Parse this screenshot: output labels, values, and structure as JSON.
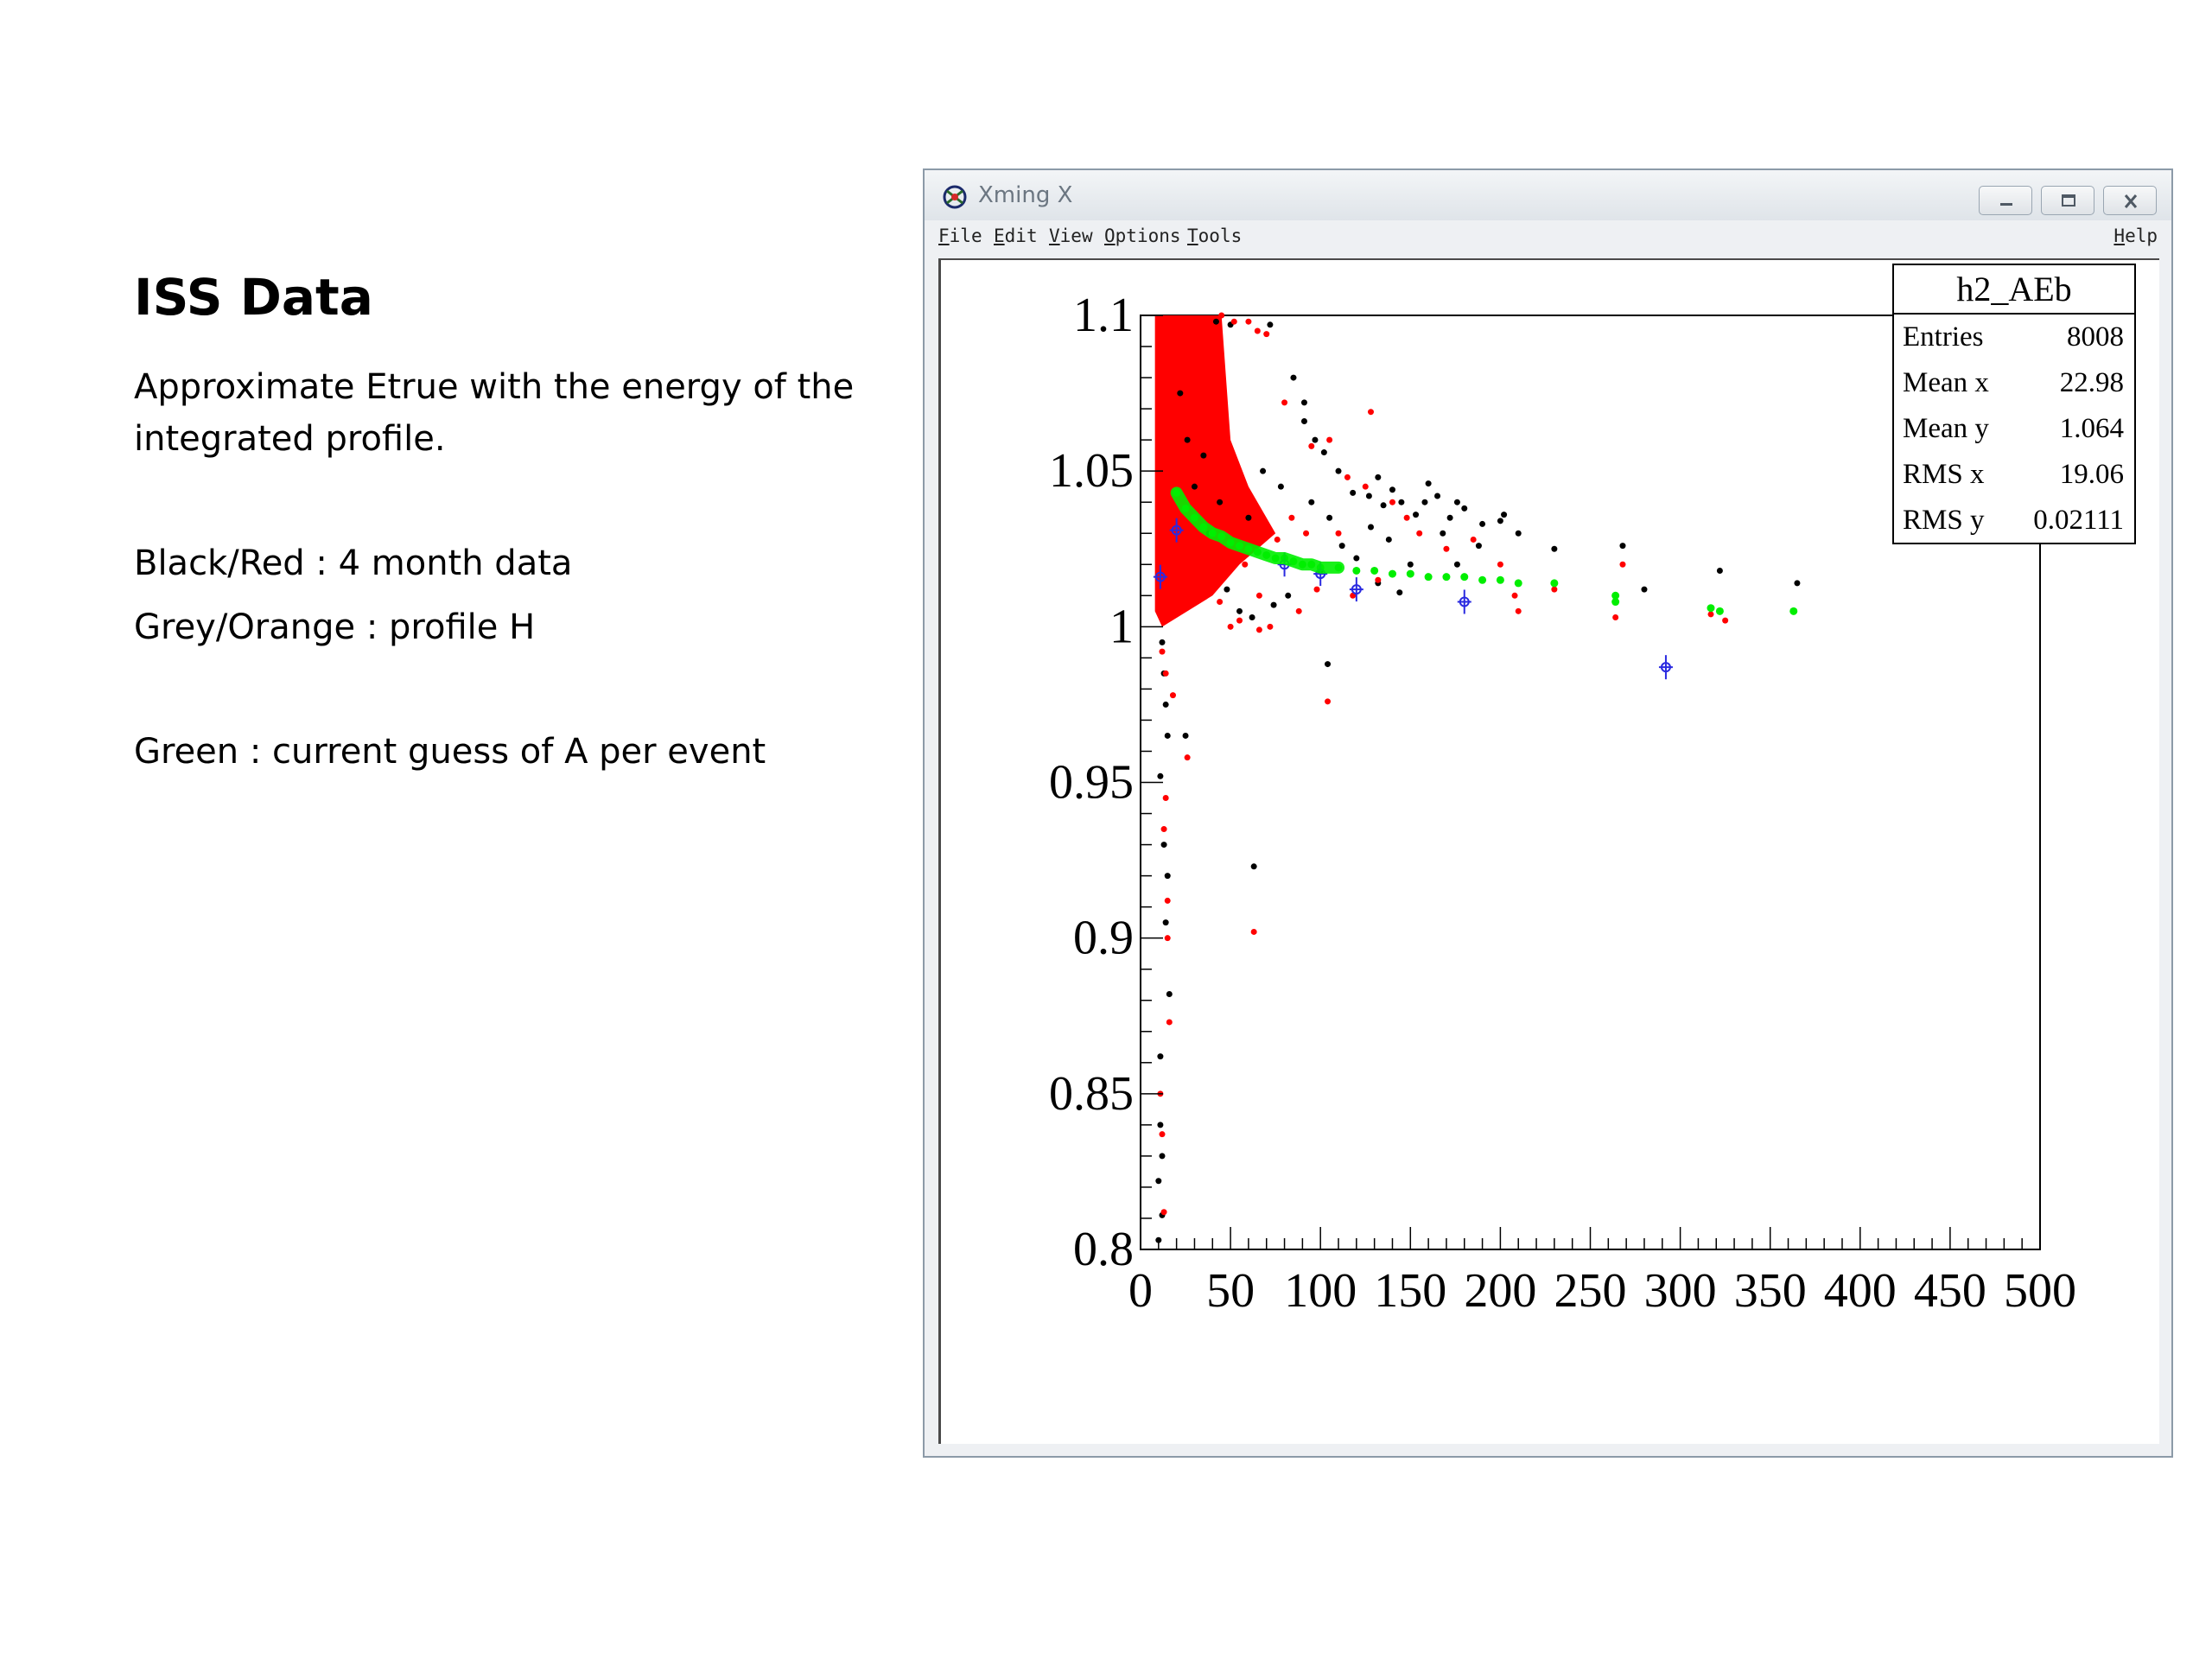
{
  "slide": {
    "title": "ISS Data",
    "description": "Approximate Etrue with the energy of the integrated profile.",
    "legend_lines": [
      "Black/Red : 4 month data",
      "Grey/Orange : profile H",
      "Green : current guess of A per event"
    ]
  },
  "window": {
    "title": "Xming X",
    "menu": [
      "File",
      "Edit",
      "View",
      "Options",
      "Tools"
    ],
    "menu_right": "Help",
    "icons": {
      "app": "xming-logo-icon",
      "minimize": "minimize-icon",
      "maximize": "maximize-icon",
      "close": "close-icon"
    }
  },
  "stats_box": {
    "title": "h2_AEb",
    "rows": [
      {
        "label": "Entries",
        "value": "8008"
      },
      {
        "label": "Mean x",
        "value": "22.98"
      },
      {
        "label": "Mean y",
        "value": "1.064"
      },
      {
        "label": "RMS x",
        "value": "19.06"
      },
      {
        "label": "RMS y",
        "value": "0.02111"
      }
    ]
  },
  "chart_data": {
    "type": "scatter",
    "title": "",
    "xlabel": "",
    "ylabel": "",
    "xlim": [
      0,
      500
    ],
    "ylim": [
      0.8,
      1.1
    ],
    "x_ticks": [
      0,
      50,
      100,
      150,
      200,
      250,
      300,
      350,
      400,
      450,
      500
    ],
    "y_ticks": [
      0.8,
      0.85,
      0.9,
      0.95,
      1.0,
      1.05,
      1.1
    ],
    "x_tick_labels": [
      "0",
      "50",
      "100",
      "150",
      "200",
      "250",
      "300",
      "350",
      "400",
      "450",
      "500"
    ],
    "y_tick_labels": [
      "0.8",
      "0.85",
      "0.9",
      "0.95",
      "1",
      "1.05",
      "1.1"
    ],
    "grid": false,
    "colors": {
      "black": "#000000",
      "red": "#ff0000",
      "green": "#00ee00",
      "blue": "#2a2ae0"
    },
    "series": [
      {
        "color": "black",
        "points": [
          [
            42,
            1.098
          ],
          [
            50,
            1.097
          ],
          [
            72,
            1.097
          ],
          [
            85,
            1.08
          ],
          [
            91,
            1.066
          ],
          [
            91,
            1.072
          ],
          [
            97,
            1.06
          ],
          [
            102,
            1.056
          ],
          [
            110,
            1.05
          ],
          [
            118,
            1.043
          ],
          [
            127,
            1.042
          ],
          [
            132,
            1.048
          ],
          [
            135,
            1.039
          ],
          [
            140,
            1.044
          ],
          [
            145,
            1.04
          ],
          [
            153,
            1.036
          ],
          [
            158,
            1.04
          ],
          [
            160,
            1.046
          ],
          [
            165,
            1.042
          ],
          [
            168,
            1.03
          ],
          [
            172,
            1.035
          ],
          [
            176,
            1.04
          ],
          [
            180,
            1.038
          ],
          [
            190,
            1.033
          ],
          [
            200,
            1.034
          ],
          [
            202,
            1.036
          ],
          [
            210,
            1.03
          ],
          [
            230,
            1.025
          ],
          [
            268,
            1.026
          ],
          [
            280,
            1.012
          ],
          [
            322,
            1.018
          ],
          [
            365,
            1.014
          ],
          [
            150,
            1.02
          ],
          [
            138,
            1.028
          ],
          [
            128,
            1.032
          ],
          [
            112,
            1.026
          ],
          [
            100,
            1.018
          ],
          [
            90,
            1.02
          ],
          [
            82,
            1.01
          ],
          [
            74,
            1.007
          ],
          [
            62,
            1.003
          ],
          [
            55,
            1.005
          ],
          [
            48,
            1.012
          ],
          [
            38,
            1.03
          ],
          [
            30,
            1.045
          ],
          [
            26,
            1.06
          ],
          [
            22,
            1.075
          ],
          [
            35,
            1.055
          ],
          [
            44,
            1.04
          ],
          [
            60,
            1.035
          ],
          [
            68,
            1.05
          ],
          [
            78,
            1.045
          ],
          [
            95,
            1.04
          ],
          [
            105,
            1.035
          ],
          [
            120,
            1.022
          ],
          [
            132,
            1.014
          ],
          [
            144,
            1.011
          ],
          [
            160,
            1.016
          ],
          [
            176,
            1.02
          ],
          [
            188,
            1.026
          ],
          [
            12,
            0.995
          ],
          [
            13,
            0.985
          ],
          [
            14,
            0.975
          ],
          [
            15,
            0.965
          ],
          [
            11,
            0.952
          ],
          [
            13,
            0.93
          ],
          [
            15,
            0.92
          ],
          [
            14,
            0.905
          ],
          [
            16,
            0.882
          ],
          [
            11,
            0.862
          ],
          [
            11,
            0.84
          ],
          [
            12,
            0.83
          ],
          [
            10,
            0.822
          ],
          [
            12,
            0.811
          ],
          [
            10,
            0.803
          ],
          [
            25,
            0.965
          ],
          [
            63,
            0.923
          ],
          [
            104,
            0.988
          ]
        ]
      },
      {
        "color": "red",
        "points": [
          [
            45,
            1.1
          ],
          [
            52,
            1.098
          ],
          [
            60,
            1.098
          ],
          [
            65,
            1.095
          ],
          [
            70,
            1.094
          ],
          [
            80,
            1.072
          ],
          [
            95,
            1.058
          ],
          [
            105,
            1.06
          ],
          [
            128,
            1.069
          ],
          [
            115,
            1.048
          ],
          [
            125,
            1.045
          ],
          [
            140,
            1.04
          ],
          [
            148,
            1.035
          ],
          [
            155,
            1.03
          ],
          [
            170,
            1.025
          ],
          [
            185,
            1.028
          ],
          [
            200,
            1.02
          ],
          [
            208,
            1.01
          ],
          [
            210,
            1.005
          ],
          [
            230,
            1.012
          ],
          [
            264,
            1.008
          ],
          [
            264,
            1.003
          ],
          [
            268,
            1.02
          ],
          [
            317,
            1.004
          ],
          [
            325,
            1.002
          ],
          [
            363,
            1.005
          ],
          [
            88,
            1.005
          ],
          [
            72,
            1.0
          ],
          [
            66,
            0.999
          ],
          [
            55,
            1.002
          ],
          [
            50,
            1.0
          ],
          [
            44,
            1.008
          ],
          [
            40,
            1.015
          ],
          [
            104,
            0.976
          ],
          [
            118,
            1.01
          ],
          [
            132,
            1.015
          ],
          [
            92,
            1.03
          ],
          [
            84,
            1.035
          ],
          [
            76,
            1.028
          ],
          [
            58,
            1.02
          ],
          [
            66,
            1.01
          ],
          [
            98,
            1.012
          ],
          [
            110,
            1.03
          ],
          [
            26,
            0.958
          ],
          [
            14,
            0.945
          ],
          [
            13,
            0.935
          ],
          [
            15,
            0.912
          ],
          [
            15,
            0.9
          ],
          [
            16,
            0.873
          ],
          [
            11,
            0.85
          ],
          [
            12,
            0.837
          ],
          [
            13,
            0.812
          ],
          [
            63,
            0.902
          ],
          [
            12,
            0.992
          ],
          [
            14,
            0.985
          ],
          [
            18,
            0.978
          ]
        ]
      },
      {
        "color": "green",
        "points": [
          [
            20,
            1.043
          ],
          [
            25,
            1.038
          ],
          [
            30,
            1.035
          ],
          [
            35,
            1.032
          ],
          [
            40,
            1.03
          ],
          [
            45,
            1.029
          ],
          [
            50,
            1.027
          ],
          [
            55,
            1.026
          ],
          [
            60,
            1.025
          ],
          [
            65,
            1.024
          ],
          [
            70,
            1.023
          ],
          [
            75,
            1.022
          ],
          [
            80,
            1.022
          ],
          [
            85,
            1.021
          ],
          [
            90,
            1.02
          ],
          [
            95,
            1.02
          ],
          [
            100,
            1.019
          ],
          [
            110,
            1.019
          ],
          [
            120,
            1.018
          ],
          [
            130,
            1.018
          ],
          [
            140,
            1.017
          ],
          [
            150,
            1.017
          ],
          [
            160,
            1.016
          ],
          [
            170,
            1.016
          ],
          [
            180,
            1.016
          ],
          [
            190,
            1.015
          ],
          [
            200,
            1.015
          ],
          [
            210,
            1.014
          ],
          [
            230,
            1.014
          ],
          [
            264,
            1.01
          ],
          [
            264,
            1.008
          ],
          [
            317,
            1.006
          ],
          [
            322,
            1.005
          ],
          [
            363,
            1.005
          ]
        ]
      },
      {
        "color": "blue",
        "points": [
          [
            11,
            1.016
          ],
          [
            20,
            1.031
          ],
          [
            80,
            1.02
          ],
          [
            100,
            1.017
          ],
          [
            120,
            1.012
          ],
          [
            180,
            1.008
          ],
          [
            292,
            0.987
          ]
        ]
      }
    ],
    "dense_region": {
      "color": "red",
      "x_range": [
        8,
        45
      ],
      "y_upper_edge": 1.1,
      "y_lower_edge": 1.0
    }
  }
}
